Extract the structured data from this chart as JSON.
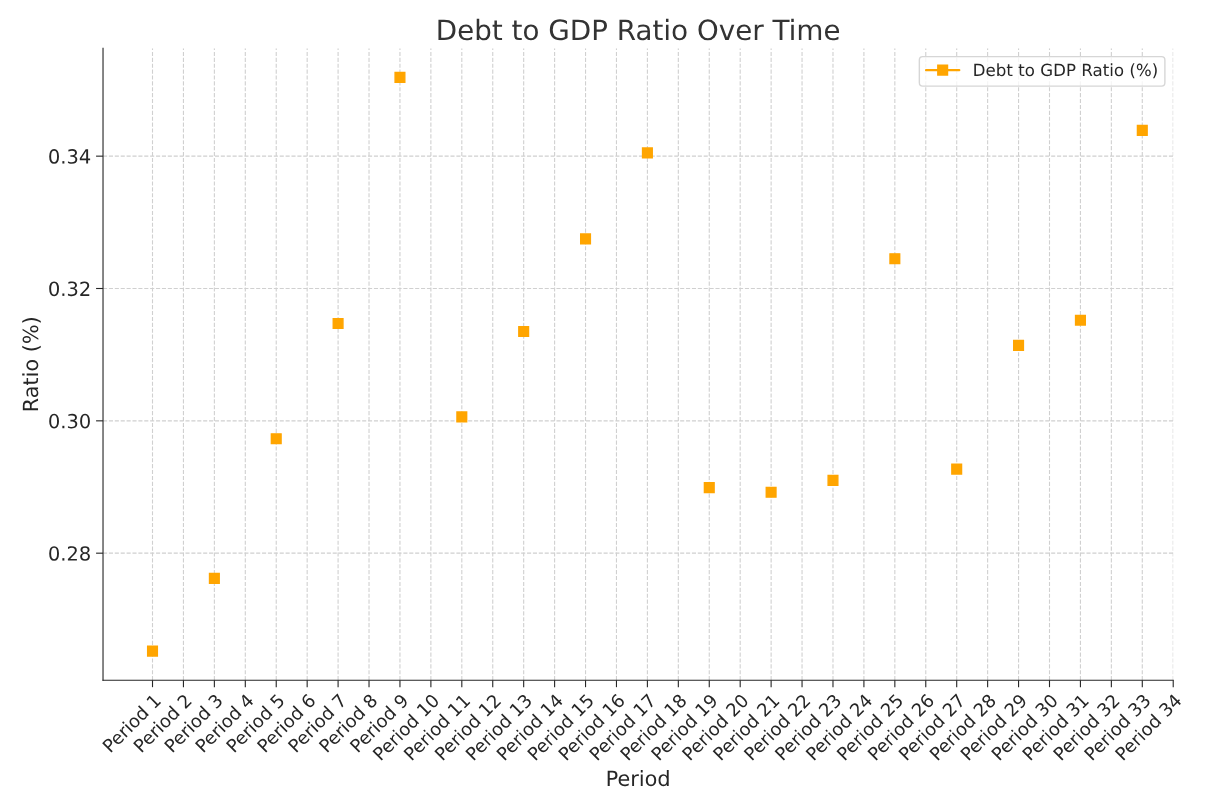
{
  "chart_data": {
    "type": "line",
    "title": "Debt to GDP Ratio Over Time",
    "xlabel": "Period",
    "ylabel": "Ratio (%)",
    "categories": [
      "Period 1",
      "Period 2",
      "Period 3",
      "Period 4",
      "Period 5",
      "Period 6",
      "Period 7",
      "Period 8",
      "Period 9",
      "Period 10",
      "Period 11",
      "Period 12",
      "Period 13",
      "Period 14",
      "Period 15",
      "Period 16",
      "Period 17",
      "Period 18",
      "Period 19",
      "Period 20",
      "Period 21",
      "Period 22",
      "Period 23",
      "Period 24",
      "Period 25",
      "Period 26",
      "Period 27",
      "Period 28",
      "Period 29",
      "Period 30",
      "Period 31",
      "Period 32",
      "Period 33",
      "Period 34"
    ],
    "series": [
      {
        "name": "Debt to GDP Ratio (%)",
        "color": "#ffa500",
        "values": [
          0.2652,
          null,
          0.2762,
          null,
          0.2973,
          null,
          0.3147,
          null,
          0.3519,
          null,
          0.3006,
          null,
          0.3135,
          null,
          0.3275,
          null,
          0.3405,
          null,
          0.2899,
          null,
          0.2892,
          null,
          0.291,
          null,
          0.3245,
          null,
          0.2927,
          null,
          0.3114,
          null,
          0.3152,
          null,
          0.3439,
          null
        ]
      }
    ],
    "ylim": [
      0.2608,
      0.3563
    ],
    "yticks": [
      0.28,
      {
        "value": 0.3,
        "label": "0.30"
      },
      0.32,
      0.34
    ],
    "marker": "square",
    "line_style": "solid",
    "grid": true,
    "legend": "top right"
  }
}
